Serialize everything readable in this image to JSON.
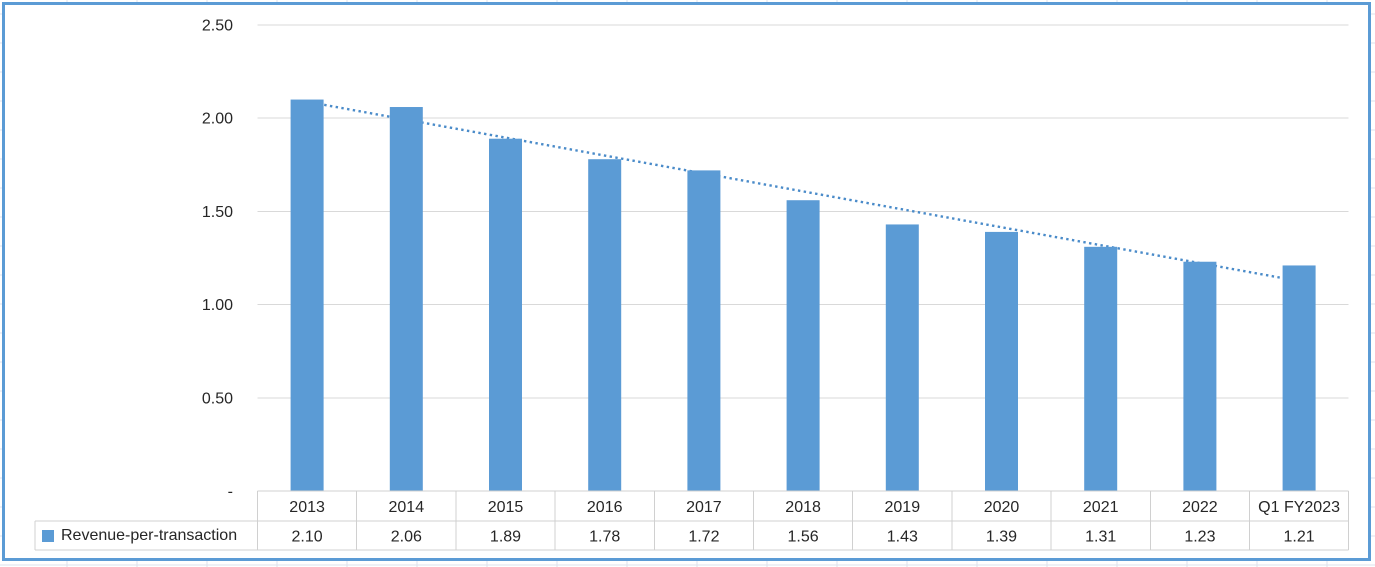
{
  "chart": {
    "colors": {
      "bar": "#5B9BD5",
      "trendline": "#4A8BC9",
      "chart_border": "#5B9BD5",
      "gridline": "#D9D9D9",
      "table_border": "#D0D0D0",
      "text": "#262626",
      "sheet_gridline": "#DCE2EC"
    }
  },
  "chart_data": {
    "type": "bar",
    "categories": [
      "2013",
      "2014",
      "2015",
      "2016",
      "2017",
      "2018",
      "2019",
      "2020",
      "2021",
      "2022",
      "Q1 FY2023"
    ],
    "series": [
      {
        "name": "Revenue-per-transaction",
        "values": [
          2.1,
          2.06,
          1.89,
          1.78,
          1.72,
          1.56,
          1.43,
          1.39,
          1.31,
          1.23,
          1.21
        ],
        "values_display": [
          "2.10",
          "2.06",
          "1.89",
          "1.78",
          "1.72",
          "1.56",
          "1.43",
          "1.39",
          "1.31",
          "1.23",
          "1.21"
        ]
      }
    ],
    "title": "",
    "xlabel": "",
    "ylabel": "",
    "ylim": [
      0,
      2.5
    ],
    "ytick_step": 0.5,
    "ytick_labels_top_to_bottom": [
      "2.50",
      "2.00",
      "1.50",
      "1.00",
      "0.50",
      "-"
    ],
    "grid": true,
    "data_table_shown": true,
    "legend_position": "data-table-left",
    "trendline": {
      "type": "linear",
      "style": "dotted"
    }
  }
}
